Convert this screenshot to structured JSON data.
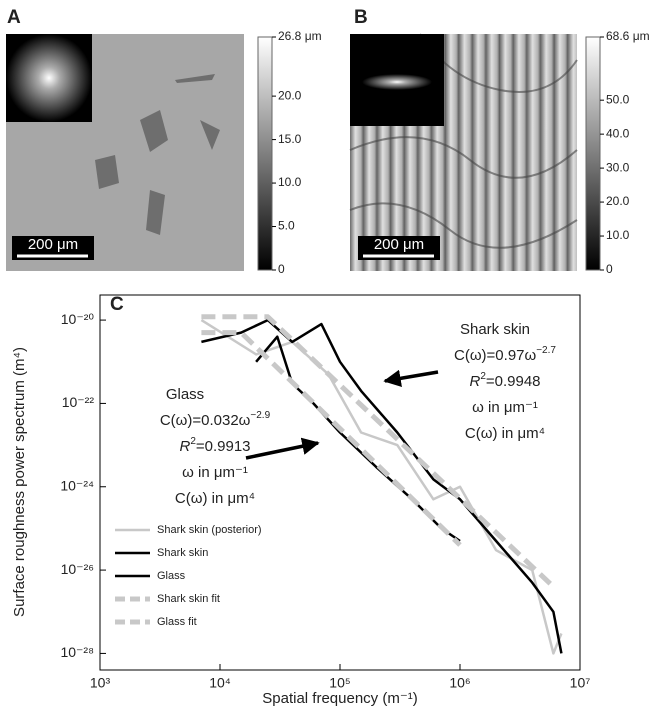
{
  "panel_a": {
    "label": "A",
    "scale_bar": "200 μm",
    "colorbar": {
      "ylim": [
        0,
        26.8
      ],
      "yticks": [
        0,
        {
          "value": 5,
          "label": "5.0"
        },
        {
          "value": 10,
          "label": "10.0"
        },
        {
          "value": 15,
          "label": "15.0"
        },
        {
          "value": 20,
          "label": "20.0"
        },
        {
          "value": 26.8,
          "label": "26.8 μm"
        }
      ]
    }
  },
  "panel_b": {
    "label": "B",
    "scale_bar": "200 μm",
    "colorbar": {
      "ylim": [
        0,
        68.6
      ],
      "yticks": [
        0,
        {
          "value": 10,
          "label": "10.0"
        },
        {
          "value": 20,
          "label": "20.0"
        },
        {
          "value": 30,
          "label": "30.0"
        },
        {
          "value": 40,
          "label": "40.0"
        },
        {
          "value": 50,
          "label": "50.0"
        },
        {
          "value": 68.6,
          "label": "68.6 μm"
        }
      ]
    }
  },
  "chart_data": {
    "type": "line",
    "panel_label": "C",
    "x_label": "Spatial frequency (m⁻¹)",
    "y_label": "Surface roughness power spectrum (m⁴)",
    "log_x": true,
    "log_y": true,
    "xlim": [
      1000,
      10000000
    ],
    "ylim": [
      4e-29,
      4e-20
    ],
    "xticks": [
      {
        "value": 1000,
        "label": "10³"
      },
      {
        "value": 10000,
        "label": "10⁴"
      },
      {
        "value": 100000,
        "label": "10⁵"
      },
      {
        "value": 1000000,
        "label": "10⁶"
      },
      {
        "value": 10000000,
        "label": "10⁷"
      }
    ],
    "yticks": [
      {
        "value": 1e-20,
        "label": "10⁻²⁰"
      },
      {
        "value": 1e-22,
        "label": "10⁻²²"
      },
      {
        "value": 1e-24,
        "label": "10⁻²⁴"
      },
      {
        "value": 1e-26,
        "label": "10⁻²⁶"
      },
      {
        "value": 1e-28,
        "label": "10⁻²⁸"
      }
    ],
    "legend": "lower left",
    "series": [
      {
        "name": "Shark skin (posterior)",
        "color": "#c8c8c8",
        "dashed": false,
        "x": [
          7000,
          20000,
          40000,
          80000,
          150000,
          300000,
          600000,
          1000000,
          2000000,
          4000000,
          6000000,
          7000000
        ],
        "values": [
          1e-20,
          1.5e-21,
          3e-21,
          5e-22,
          2e-23,
          1e-23,
          5e-25,
          1e-24,
          3e-26,
          1e-26,
          1e-28,
          3e-28
        ]
      },
      {
        "name": "Shark skin",
        "color": "#000000",
        "dashed": false,
        "x": [
          7000,
          15000,
          25000,
          40000,
          70000,
          100000,
          150000,
          300000,
          600000,
          1000000,
          2000000,
          4000000,
          6000000,
          7000000
        ],
        "values": [
          3e-21,
          5e-21,
          1e-20,
          3e-21,
          8e-21,
          1e-21,
          2e-22,
          2e-23,
          1.5e-24,
          5e-25,
          5e-26,
          5e-27,
          1e-27,
          1e-28
        ]
      },
      {
        "name": "Glass",
        "color": "#000000",
        "dashed": false,
        "x": [
          20000,
          30000,
          40000,
          60000,
          100000,
          200000,
          400000,
          700000,
          1000000
        ],
        "values": [
          1e-21,
          4e-21,
          3e-22,
          1e-22,
          2e-23,
          3e-24,
          5e-25,
          1e-25,
          5e-26
        ]
      },
      {
        "name": "Shark skin fit",
        "color": "#c8c8c8",
        "dashed": true,
        "x": [
          7000,
          25000,
          6000000
        ],
        "values": [
          1.2e-20,
          1.2e-20,
          4e-27
        ]
      },
      {
        "name": "Glass fit",
        "color": "#c8c8c8",
        "dashed": true,
        "x": [
          7000,
          15000,
          1000000
        ],
        "values": [
          5e-21,
          5e-21,
          4e-26
        ]
      }
    ],
    "annotations": {
      "shark": {
        "title": "Shark skin",
        "equation": {
          "base": "C(ω)=0.97ω",
          "exponent": "−2.7"
        },
        "r2": {
          "base": "R",
          "exponent": "2",
          "rest": "=0.9948"
        },
        "omega_unit": "ω in μm⁻¹",
        "c_unit": "C(ω) in μm⁴"
      },
      "glass": {
        "title": "Glass",
        "equation": {
          "base": "C(ω)=0.032ω",
          "exponent": "−2.9"
        },
        "r2": {
          "base": "R",
          "exponent": "2",
          "rest": "=0.9913"
        },
        "omega_unit": "ω in μm⁻¹",
        "c_unit": "C(ω) in μm⁴"
      }
    }
  }
}
